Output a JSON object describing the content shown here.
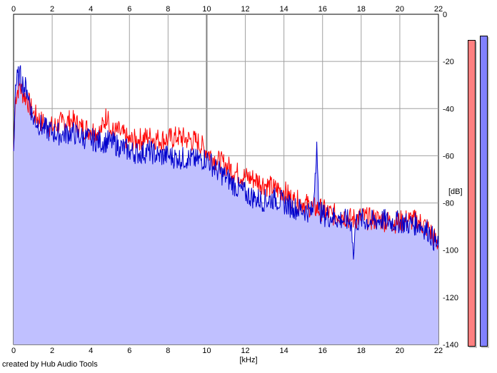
{
  "credit": "created by Hub Audio Tools",
  "colors": {
    "background": "#ffffff",
    "fill": "#c0c0ff",
    "series_red": "#ff0000",
    "series_blue": "#0000cc",
    "grid": "#a0a0a0",
    "meter_left": "#ff8080",
    "meter_right": "#8080ff"
  },
  "meters": {
    "left_db": -11,
    "right_db": -9
  },
  "chart_data": {
    "type": "line",
    "xlabel": "[kHz]",
    "ylabel": "[dB]",
    "xlim": [
      0,
      22
    ],
    "ylim": [
      -140,
      0
    ],
    "xticks": [
      0,
      2,
      4,
      6,
      8,
      10,
      12,
      14,
      16,
      18,
      20,
      22
    ],
    "yticks": [
      0,
      -20,
      -40,
      -60,
      -80,
      -100,
      -120,
      -140
    ],
    "grid": true,
    "series": [
      {
        "color": "#ff0000",
        "points": [
          [
            0,
            -58
          ],
          [
            0.1,
            -35
          ],
          [
            0.3,
            -30
          ],
          [
            0.5,
            -34
          ],
          [
            0.7,
            -36
          ],
          [
            1,
            -42
          ],
          [
            1.5,
            -46
          ],
          [
            2,
            -48
          ],
          [
            2.5,
            -46
          ],
          [
            3,
            -45
          ],
          [
            3.5,
            -48
          ],
          [
            4,
            -49
          ],
          [
            4.5,
            -50
          ],
          [
            4.9,
            -41
          ],
          [
            5,
            -50
          ],
          [
            5.5,
            -50
          ],
          [
            6,
            -54
          ],
          [
            6.5,
            -53
          ],
          [
            7,
            -52
          ],
          [
            7.5,
            -53
          ],
          [
            8,
            -53
          ],
          [
            8.5,
            -52
          ],
          [
            9,
            -53
          ],
          [
            9.5,
            -54
          ],
          [
            10,
            -58
          ],
          [
            10.5,
            -62
          ],
          [
            11,
            -64
          ],
          [
            11.5,
            -67
          ],
          [
            12,
            -69
          ],
          [
            12.5,
            -70
          ],
          [
            13,
            -72
          ],
          [
            13.5,
            -74
          ],
          [
            14,
            -75
          ],
          [
            14.5,
            -79
          ],
          [
            15,
            -80
          ],
          [
            15.5,
            -82
          ],
          [
            16,
            -83
          ],
          [
            16.5,
            -85
          ],
          [
            17,
            -85
          ],
          [
            17.5,
            -87
          ],
          [
            18,
            -86
          ],
          [
            18.5,
            -87
          ],
          [
            19,
            -87
          ],
          [
            19.5,
            -88
          ],
          [
            20,
            -88
          ],
          [
            20.5,
            -87
          ],
          [
            21,
            -88
          ],
          [
            21.5,
            -91
          ],
          [
            22,
            -98
          ]
        ]
      },
      {
        "color": "#0000cc",
        "points": [
          [
            0,
            -58
          ],
          [
            0.1,
            -30
          ],
          [
            0.3,
            -25
          ],
          [
            0.5,
            -30
          ],
          [
            0.7,
            -32
          ],
          [
            1,
            -44
          ],
          [
            1.5,
            -48
          ],
          [
            2,
            -50
          ],
          [
            2.5,
            -51
          ],
          [
            3,
            -50
          ],
          [
            3.5,
            -52
          ],
          [
            4,
            -53
          ],
          [
            4.5,
            -54
          ],
          [
            5,
            -54
          ],
          [
            5.5,
            -56
          ],
          [
            6,
            -58
          ],
          [
            6.5,
            -59
          ],
          [
            7,
            -58
          ],
          [
            7.5,
            -60
          ],
          [
            8,
            -60
          ],
          [
            8.5,
            -61
          ],
          [
            9,
            -61
          ],
          [
            9.5,
            -62
          ],
          [
            10,
            -61
          ],
          [
            10.5,
            -66
          ],
          [
            11,
            -69
          ],
          [
            11.5,
            -73
          ],
          [
            12,
            -76
          ],
          [
            12.5,
            -78
          ],
          [
            13,
            -79
          ],
          [
            13.5,
            -78
          ],
          [
            14,
            -80
          ],
          [
            14.5,
            -82
          ],
          [
            15,
            -83
          ],
          [
            15.5,
            -84
          ],
          [
            15.7,
            -54
          ],
          [
            15.8,
            -83
          ],
          [
            16,
            -85
          ],
          [
            16.5,
            -86
          ],
          [
            17,
            -87
          ],
          [
            17.5,
            -88
          ],
          [
            17.6,
            -104
          ],
          [
            17.7,
            -88
          ],
          [
            18,
            -87
          ],
          [
            18.5,
            -88
          ],
          [
            19,
            -87
          ],
          [
            19.5,
            -88
          ],
          [
            20,
            -88
          ],
          [
            20.5,
            -89
          ],
          [
            21,
            -89
          ],
          [
            21.5,
            -92
          ],
          [
            22,
            -99
          ]
        ]
      }
    ]
  }
}
